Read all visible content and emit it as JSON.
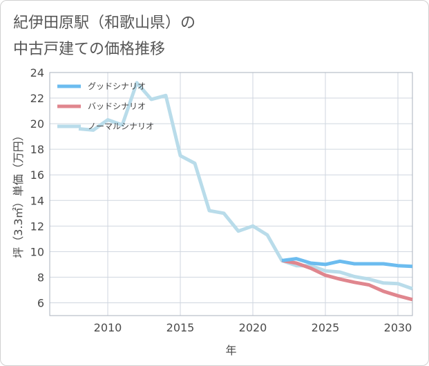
{
  "page": {
    "title_line1": "紀伊田原駅（和歌山県）の",
    "title_line2": "中古戸建ての価格推移"
  },
  "chart_data": {
    "type": "line",
    "title": "紀伊田原駅（和歌山県）の中古戸建ての価格推移",
    "xlabel": "年",
    "ylabel": "坪（3.3㎡）単価（万円）",
    "xlim": [
      2006,
      2031
    ],
    "ylim": [
      5,
      24
    ],
    "x_ticks": [
      2010,
      2015,
      2020,
      2025,
      2030
    ],
    "y_ticks": [
      6,
      8,
      10,
      12,
      14,
      16,
      18,
      20,
      22,
      24
    ],
    "grid": true,
    "legend_position": "top-left",
    "series": [
      {
        "name": "グッドシナリオ",
        "color": "#6cbcef",
        "x": [
          2022,
          2023,
          2024,
          2025,
          2026,
          2027,
          2028,
          2029,
          2030,
          2031
        ],
        "values": [
          9.3,
          9.45,
          9.1,
          9.0,
          9.25,
          9.05,
          9.05,
          9.05,
          8.9,
          8.85
        ]
      },
      {
        "name": "バッドシナリオ",
        "color": "#e0868e",
        "x": [
          2022,
          2023,
          2024,
          2025,
          2026,
          2027,
          2028,
          2029,
          2030,
          2031
        ],
        "values": [
          9.3,
          9.1,
          8.7,
          8.15,
          7.85,
          7.6,
          7.4,
          6.9,
          6.55,
          6.25
        ]
      },
      {
        "name": "ノーマルシナリオ",
        "color": "#b9dcea",
        "x": [
          2008,
          2009,
          2010,
          2011,
          2012,
          2013,
          2014,
          2015,
          2016,
          2017,
          2018,
          2019,
          2020,
          2021,
          2022,
          2023,
          2024,
          2025,
          2026,
          2027,
          2028,
          2029,
          2030,
          2031
        ],
        "values": [
          19.6,
          19.5,
          20.3,
          19.9,
          23.2,
          21.9,
          22.2,
          17.5,
          16.9,
          13.2,
          13.0,
          11.6,
          12.0,
          11.3,
          9.3,
          8.9,
          8.9,
          8.5,
          8.4,
          8.05,
          7.85,
          7.55,
          7.5,
          7.1
        ]
      }
    ]
  }
}
